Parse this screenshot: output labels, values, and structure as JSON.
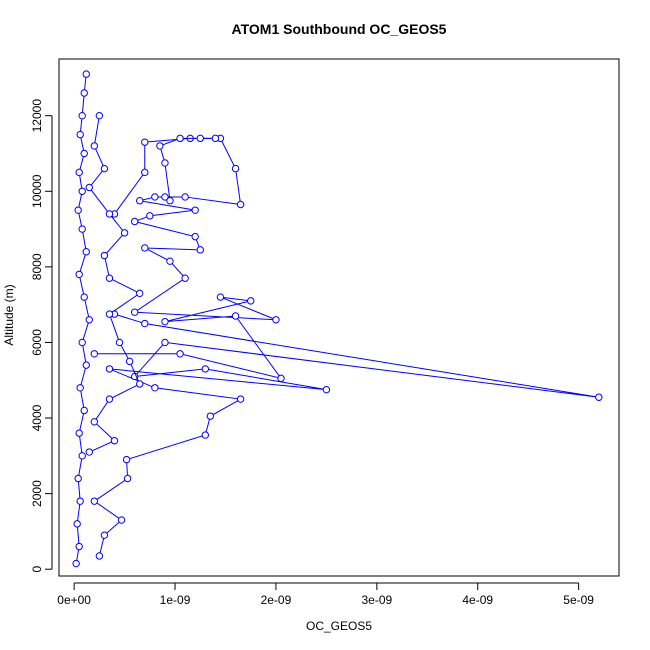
{
  "chart_data": {
    "type": "scatter",
    "title": "ATOM1 Southbound OC_GEOS5",
    "xlabel": "OC_GEOS5",
    "ylabel": "Altitude (m)",
    "xlim": [
      -1.5e-10,
      5.4e-09
    ],
    "ylim": [
      -180,
      13500
    ],
    "x_ticks": [
      0,
      1e-09,
      2e-09,
      3e-09,
      4e-09,
      5e-09
    ],
    "x_tick_labels": [
      "0e+00",
      "1e-09",
      "2e-09",
      "3e-09",
      "4e-09",
      "5e-09"
    ],
    "y_ticks": [
      0,
      2000,
      4000,
      6000,
      8000,
      10000,
      12000
    ],
    "y_tick_labels": [
      "0",
      "2000",
      "4000",
      "6000",
      "8000",
      "10000",
      "12000"
    ],
    "grid": false,
    "legend": "none",
    "color": "#0000ff",
    "marker": "open-circle",
    "connected": true,
    "series": [
      {
        "values": [
          [
            2e-11,
            150
          ],
          [
            5e-11,
            600
          ],
          [
            3e-11,
            1200
          ],
          [
            6e-11,
            1800
          ],
          [
            4e-11,
            2400
          ],
          [
            8e-11,
            3000
          ],
          [
            5e-11,
            3600
          ],
          [
            1e-10,
            4200
          ],
          [
            6e-11,
            4800
          ],
          [
            1.2e-10,
            5400
          ],
          [
            8e-11,
            6000
          ],
          [
            1.5e-10,
            6600
          ],
          [
            1e-10,
            7200
          ],
          [
            5e-11,
            7800
          ],
          [
            1.2e-10,
            8400
          ],
          [
            8e-11,
            9000
          ],
          [
            4e-11,
            9500
          ],
          [
            8e-11,
            10000
          ],
          [
            5e-11,
            10500
          ],
          [
            1e-10,
            11000
          ],
          [
            6e-11,
            11500
          ],
          [
            8e-11,
            12000
          ],
          [
            1e-10,
            12600
          ],
          [
            1.2e-10,
            13100
          ]
        ]
      },
      {
        "values": [
          [
            2.5e-10,
            350
          ],
          [
            3e-10,
            900
          ],
          [
            4.7e-10,
            1300
          ],
          [
            2e-10,
            1800
          ],
          [
            5.3e-10,
            2400
          ],
          [
            5.2e-10,
            2900
          ],
          [
            1.3e-09,
            3550
          ],
          [
            1.35e-09,
            4050
          ],
          [
            1.65e-09,
            4500
          ],
          [
            8e-10,
            4800
          ],
          [
            3.5e-10,
            5300
          ],
          [
            2.5e-09,
            4750
          ],
          [
            1.3e-09,
            5300
          ],
          [
            6e-10,
            5100
          ],
          [
            9e-10,
            6000
          ],
          [
            5.2e-09,
            4550
          ],
          [
            7e-10,
            6500
          ],
          [
            4e-10,
            6750
          ]
        ]
      },
      {
        "values": [
          [
            2e-10,
            5700
          ],
          [
            1.05e-09,
            5700
          ],
          [
            2.05e-09,
            5050
          ],
          [
            1.6e-09,
            6700
          ],
          [
            9e-10,
            6550
          ],
          [
            1.75e-09,
            7100
          ],
          [
            1.45e-09,
            7200
          ],
          [
            2e-09,
            6600
          ],
          [
            6e-10,
            6800
          ],
          [
            1.1e-09,
            7700
          ],
          [
            9.5e-10,
            8150
          ],
          [
            7e-10,
            8500
          ],
          [
            1.25e-09,
            8450
          ],
          [
            1.2e-09,
            8800
          ],
          [
            6e-10,
            9200
          ],
          [
            7.5e-10,
            9350
          ],
          [
            1.2e-09,
            9500
          ],
          [
            6.5e-10,
            9750
          ],
          [
            8e-10,
            9850
          ],
          [
            1.1e-09,
            9850
          ],
          [
            1.65e-09,
            9650
          ],
          [
            1.6e-09,
            10600
          ],
          [
            1.45e-09,
            11400
          ],
          [
            1.15e-09,
            11400
          ],
          [
            7e-10,
            11300
          ],
          [
            7e-10,
            10500
          ],
          [
            4e-10,
            9400
          ]
        ]
      },
      {
        "values": [
          [
            9e-10,
            9850
          ],
          [
            9.5e-10,
            9750
          ],
          [
            9e-10,
            10750
          ],
          [
            8.5e-10,
            11200
          ],
          [
            1.05e-09,
            11400
          ],
          [
            1.25e-09,
            11400
          ],
          [
            1.4e-09,
            11400
          ]
        ]
      },
      {
        "values": [
          [
            1.5e-10,
            3100
          ],
          [
            4e-10,
            3400
          ],
          [
            2e-10,
            3900
          ],
          [
            3.5e-10,
            4500
          ],
          [
            6.5e-10,
            4900
          ],
          [
            5.5e-10,
            5500
          ],
          [
            4.5e-10,
            6000
          ],
          [
            3.5e-10,
            6750
          ],
          [
            6.5e-10,
            7300
          ],
          [
            3.5e-10,
            7700
          ],
          [
            3e-10,
            8300
          ],
          [
            5e-10,
            8900
          ],
          [
            3.5e-10,
            9400
          ],
          [
            1.5e-10,
            10100
          ],
          [
            3e-10,
            10600
          ],
          [
            2e-10,
            11200
          ],
          [
            2.5e-10,
            12000
          ]
        ]
      }
    ]
  }
}
